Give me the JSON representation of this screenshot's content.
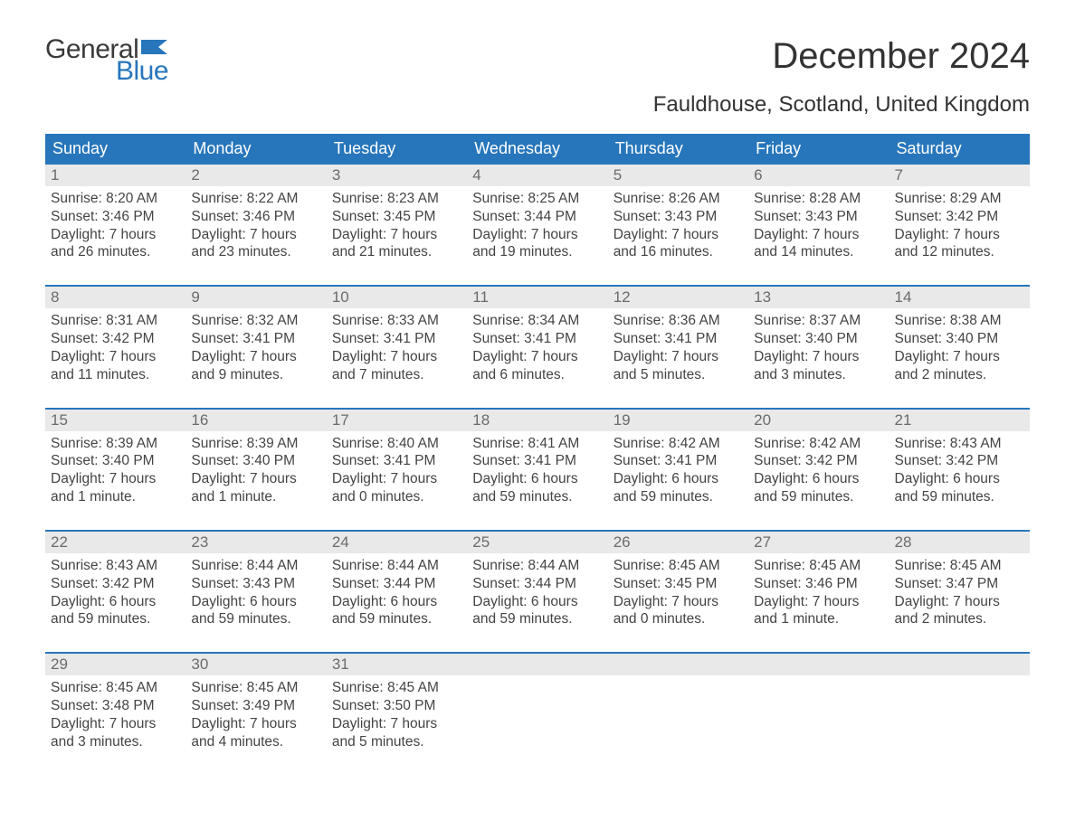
{
  "logo": {
    "word1": "General",
    "word2": "Blue"
  },
  "title": "December 2024",
  "location": "Fauldhouse, Scotland, United Kingdom",
  "colors": {
    "header_bg": "#2776bb",
    "header_text": "#ffffff",
    "daynum_bg": "#e9e9e9",
    "daynum_text": "#6b6b6b",
    "body_text": "#444444",
    "week_border": "#2776bb",
    "page_bg": "#ffffff",
    "logo_blue": "#2776bb",
    "logo_gray": "#3a3a3a"
  },
  "typography": {
    "title_fontsize": 40,
    "location_fontsize": 24,
    "dayhead_fontsize": 18,
    "daynum_fontsize": 17,
    "cell_fontsize": 15.5,
    "logo_fontsize": 30,
    "font_family": "Arial"
  },
  "day_headers": [
    "Sunday",
    "Monday",
    "Tuesday",
    "Wednesday",
    "Thursday",
    "Friday",
    "Saturday"
  ],
  "weeks": [
    [
      {
        "d": "1",
        "sr": "Sunrise: 8:20 AM",
        "ss": "Sunset: 3:46 PM",
        "dl1": "Daylight: 7 hours",
        "dl2": "and 26 minutes."
      },
      {
        "d": "2",
        "sr": "Sunrise: 8:22 AM",
        "ss": "Sunset: 3:46 PM",
        "dl1": "Daylight: 7 hours",
        "dl2": "and 23 minutes."
      },
      {
        "d": "3",
        "sr": "Sunrise: 8:23 AM",
        "ss": "Sunset: 3:45 PM",
        "dl1": "Daylight: 7 hours",
        "dl2": "and 21 minutes."
      },
      {
        "d": "4",
        "sr": "Sunrise: 8:25 AM",
        "ss": "Sunset: 3:44 PM",
        "dl1": "Daylight: 7 hours",
        "dl2": "and 19 minutes."
      },
      {
        "d": "5",
        "sr": "Sunrise: 8:26 AM",
        "ss": "Sunset: 3:43 PM",
        "dl1": "Daylight: 7 hours",
        "dl2": "and 16 minutes."
      },
      {
        "d": "6",
        "sr": "Sunrise: 8:28 AM",
        "ss": "Sunset: 3:43 PM",
        "dl1": "Daylight: 7 hours",
        "dl2": "and 14 minutes."
      },
      {
        "d": "7",
        "sr": "Sunrise: 8:29 AM",
        "ss": "Sunset: 3:42 PM",
        "dl1": "Daylight: 7 hours",
        "dl2": "and 12 minutes."
      }
    ],
    [
      {
        "d": "8",
        "sr": "Sunrise: 8:31 AM",
        "ss": "Sunset: 3:42 PM",
        "dl1": "Daylight: 7 hours",
        "dl2": "and 11 minutes."
      },
      {
        "d": "9",
        "sr": "Sunrise: 8:32 AM",
        "ss": "Sunset: 3:41 PM",
        "dl1": "Daylight: 7 hours",
        "dl2": "and 9 minutes."
      },
      {
        "d": "10",
        "sr": "Sunrise: 8:33 AM",
        "ss": "Sunset: 3:41 PM",
        "dl1": "Daylight: 7 hours",
        "dl2": "and 7 minutes."
      },
      {
        "d": "11",
        "sr": "Sunrise: 8:34 AM",
        "ss": "Sunset: 3:41 PM",
        "dl1": "Daylight: 7 hours",
        "dl2": "and 6 minutes."
      },
      {
        "d": "12",
        "sr": "Sunrise: 8:36 AM",
        "ss": "Sunset: 3:41 PM",
        "dl1": "Daylight: 7 hours",
        "dl2": "and 5 minutes."
      },
      {
        "d": "13",
        "sr": "Sunrise: 8:37 AM",
        "ss": "Sunset: 3:40 PM",
        "dl1": "Daylight: 7 hours",
        "dl2": "and 3 minutes."
      },
      {
        "d": "14",
        "sr": "Sunrise: 8:38 AM",
        "ss": "Sunset: 3:40 PM",
        "dl1": "Daylight: 7 hours",
        "dl2": "and 2 minutes."
      }
    ],
    [
      {
        "d": "15",
        "sr": "Sunrise: 8:39 AM",
        "ss": "Sunset: 3:40 PM",
        "dl1": "Daylight: 7 hours",
        "dl2": "and 1 minute."
      },
      {
        "d": "16",
        "sr": "Sunrise: 8:39 AM",
        "ss": "Sunset: 3:40 PM",
        "dl1": "Daylight: 7 hours",
        "dl2": "and 1 minute."
      },
      {
        "d": "17",
        "sr": "Sunrise: 8:40 AM",
        "ss": "Sunset: 3:41 PM",
        "dl1": "Daylight: 7 hours",
        "dl2": "and 0 minutes."
      },
      {
        "d": "18",
        "sr": "Sunrise: 8:41 AM",
        "ss": "Sunset: 3:41 PM",
        "dl1": "Daylight: 6 hours",
        "dl2": "and 59 minutes."
      },
      {
        "d": "19",
        "sr": "Sunrise: 8:42 AM",
        "ss": "Sunset: 3:41 PM",
        "dl1": "Daylight: 6 hours",
        "dl2": "and 59 minutes."
      },
      {
        "d": "20",
        "sr": "Sunrise: 8:42 AM",
        "ss": "Sunset: 3:42 PM",
        "dl1": "Daylight: 6 hours",
        "dl2": "and 59 minutes."
      },
      {
        "d": "21",
        "sr": "Sunrise: 8:43 AM",
        "ss": "Sunset: 3:42 PM",
        "dl1": "Daylight: 6 hours",
        "dl2": "and 59 minutes."
      }
    ],
    [
      {
        "d": "22",
        "sr": "Sunrise: 8:43 AM",
        "ss": "Sunset: 3:42 PM",
        "dl1": "Daylight: 6 hours",
        "dl2": "and 59 minutes."
      },
      {
        "d": "23",
        "sr": "Sunrise: 8:44 AM",
        "ss": "Sunset: 3:43 PM",
        "dl1": "Daylight: 6 hours",
        "dl2": "and 59 minutes."
      },
      {
        "d": "24",
        "sr": "Sunrise: 8:44 AM",
        "ss": "Sunset: 3:44 PM",
        "dl1": "Daylight: 6 hours",
        "dl2": "and 59 minutes."
      },
      {
        "d": "25",
        "sr": "Sunrise: 8:44 AM",
        "ss": "Sunset: 3:44 PM",
        "dl1": "Daylight: 6 hours",
        "dl2": "and 59 minutes."
      },
      {
        "d": "26",
        "sr": "Sunrise: 8:45 AM",
        "ss": "Sunset: 3:45 PM",
        "dl1": "Daylight: 7 hours",
        "dl2": "and 0 minutes."
      },
      {
        "d": "27",
        "sr": "Sunrise: 8:45 AM",
        "ss": "Sunset: 3:46 PM",
        "dl1": "Daylight: 7 hours",
        "dl2": "and 1 minute."
      },
      {
        "d": "28",
        "sr": "Sunrise: 8:45 AM",
        "ss": "Sunset: 3:47 PM",
        "dl1": "Daylight: 7 hours",
        "dl2": "and 2 minutes."
      }
    ],
    [
      {
        "d": "29",
        "sr": "Sunrise: 8:45 AM",
        "ss": "Sunset: 3:48 PM",
        "dl1": "Daylight: 7 hours",
        "dl2": "and 3 minutes."
      },
      {
        "d": "30",
        "sr": "Sunrise: 8:45 AM",
        "ss": "Sunset: 3:49 PM",
        "dl1": "Daylight: 7 hours",
        "dl2": "and 4 minutes."
      },
      {
        "d": "31",
        "sr": "Sunrise: 8:45 AM",
        "ss": "Sunset: 3:50 PM",
        "dl1": "Daylight: 7 hours",
        "dl2": "and 5 minutes."
      },
      null,
      null,
      null,
      null
    ]
  ]
}
